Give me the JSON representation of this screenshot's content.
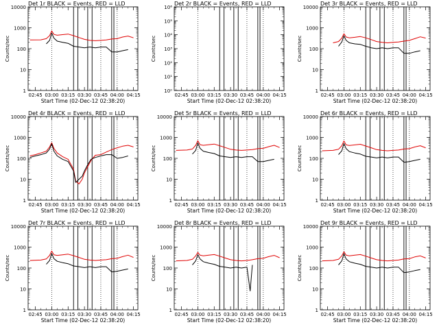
{
  "colors": {
    "events": "#000000",
    "lld": "#e00000",
    "axis": "#000000",
    "background": "#ffffff"
  },
  "x_tick_labels": [
    "02:45",
    "03:00",
    "03:15",
    "03:30",
    "03:45",
    "04:00",
    "04:15"
  ],
  "x_axis_label": "Start Time (02-Dec-12 02:38:20)",
  "y_axis_label": "Counts/sec",
  "chart_data": [
    {
      "type": "line",
      "title": "Det 1r BLACK = Events, RED = LLD",
      "xlabel": "Start Time (02-Dec-12 02:38:20)",
      "ylabel": "Counts/sec",
      "y_scale": "log",
      "ylim": [
        1,
        10000
      ],
      "y_tick_labels": [
        "1",
        "10",
        "100",
        "1000",
        "10000"
      ],
      "x_tick_labels": [
        "02:45",
        "03:00",
        "03:15",
        "03:30",
        "03:45",
        "04:00",
        "04:15"
      ],
      "x": [
        "02:40",
        "02:50",
        "02:55",
        "02:58",
        "03:00",
        "03:02",
        "03:05",
        "03:10",
        "03:15",
        "03:20",
        "03:25",
        "03:30",
        "03:35",
        "03:40",
        "03:45",
        "03:50",
        "03:55",
        "04:00",
        "04:05",
        "04:10",
        "04:15"
      ],
      "series": [
        {
          "name": "LLD",
          "values": [
            260,
            265,
            300,
            420,
            700,
            480,
            440,
            470,
            500,
            420,
            340,
            280,
            250,
            240,
            250,
            260,
            290,
            300,
            360,
            400,
            330
          ]
        },
        {
          "name": "Events",
          "values": [
            null,
            null,
            170,
            250,
            560,
            320,
            230,
            200,
            180,
            130,
            120,
            110,
            120,
            110,
            120,
            120,
            70,
            70,
            80,
            90,
            null
          ]
        }
      ]
    },
    {
      "type": "line",
      "title": "Det 2r BLACK = Events, RED = LLD",
      "xlabel": "Start Time (02-Dec-12 02:38:20)",
      "ylabel": "Counts/sec",
      "y_scale": "log",
      "ylim": [
        1,
        1000000
      ],
      "y_tick_labels": [
        "10⁰",
        "10¹",
        "10²",
        "10³",
        "10⁴",
        "10⁵",
        "10⁶"
      ],
      "x_tick_labels": [
        "02:45",
        "03:00",
        "03:15",
        "03:30",
        "03:45",
        "04:00",
        "04:15"
      ],
      "x": [],
      "series": []
    },
    {
      "type": "line",
      "title": "Det 3r BLACK = Events, RED = LLD",
      "xlabel": "Start Time (02-Dec-12 02:38:20)",
      "ylabel": "Counts/sec",
      "y_scale": "log",
      "ylim": [
        1,
        10000
      ],
      "y_tick_labels": [
        "1",
        "10",
        "100",
        "1000",
        "10000"
      ],
      "x_tick_labels": [
        "02:45",
        "03:00",
        "03:15",
        "03:30",
        "03:45",
        "04:00",
        "04:15"
      ],
      "x": [
        "02:50",
        "02:55",
        "02:58",
        "03:00",
        "03:02",
        "03:05",
        "03:10",
        "03:15",
        "03:20",
        "03:25",
        "03:30",
        "03:35",
        "03:40",
        "03:45",
        "03:50",
        "03:55",
        "04:00",
        "04:05",
        "04:10",
        "04:15"
      ],
      "series": [
        {
          "name": "LLD",
          "values": [
            190,
            220,
            320,
            520,
            360,
            330,
            350,
            380,
            330,
            270,
            220,
            200,
            190,
            200,
            210,
            230,
            250,
            300,
            370,
            320
          ]
        },
        {
          "name": "Events",
          "values": [
            null,
            130,
            210,
            420,
            250,
            190,
            170,
            160,
            130,
            110,
            100,
            110,
            100,
            110,
            110,
            60,
            60,
            70,
            80,
            null
          ]
        }
      ]
    },
    {
      "type": "line",
      "title": "Det 4r BLACK = Events, RED = LLD",
      "xlabel": "Start Time (02-Dec-12 02:38:20)",
      "ylabel": "Counts/sec",
      "y_scale": "log",
      "ylim": [
        1,
        10000
      ],
      "y_tick_labels": [
        "1",
        "10",
        "100",
        "1000",
        "10000"
      ],
      "x_tick_labels": [
        "02:45",
        "03:00",
        "03:15",
        "03:30",
        "03:45",
        "04:00",
        "04:15"
      ],
      "x": [
        "02:40",
        "02:45",
        "02:50",
        "02:55",
        "02:58",
        "03:00",
        "03:02",
        "03:05",
        "03:10",
        "03:15",
        "03:20",
        "03:22",
        "03:25",
        "03:28",
        "03:30",
        "03:33",
        "03:36",
        "03:40",
        "03:45",
        "03:50",
        "03:55",
        "04:00",
        "04:05",
        "04:10",
        "04:15"
      ],
      "series": [
        {
          "name": "LLD",
          "values": [
            130,
            150,
            180,
            220,
            350,
            560,
            300,
            180,
            120,
            90,
            30,
            8,
            6,
            10,
            20,
            40,
            80,
            140,
            150,
            200,
            260,
            320,
            380,
            420,
            350
          ]
        },
        {
          "name": "Events",
          "values": [
            110,
            130,
            150,
            180,
            280,
            500,
            220,
            130,
            90,
            70,
            25,
            7,
            10,
            14,
            25,
            50,
            90,
            110,
            130,
            150,
            150,
            100,
            110,
            130,
            null
          ]
        }
      ]
    },
    {
      "type": "line",
      "title": "Det 5r BLACK = Events, RED = LLD",
      "xlabel": "Start Time (02-Dec-12 02:38:20)",
      "ylabel": "Counts/sec",
      "y_scale": "log",
      "ylim": [
        1,
        10000
      ],
      "y_tick_labels": [
        "1",
        "10",
        "100",
        "1000",
        "10000"
      ],
      "x_tick_labels": [
        "02:45",
        "03:00",
        "03:15",
        "03:30",
        "03:45",
        "04:00",
        "04:15"
      ],
      "x": [
        "02:40",
        "02:50",
        "02:55",
        "02:58",
        "03:00",
        "03:02",
        "03:05",
        "03:10",
        "03:15",
        "03:20",
        "03:25",
        "03:30",
        "03:35",
        "03:40",
        "03:45",
        "03:50",
        "03:55",
        "04:00",
        "04:05",
        "04:10",
        "04:15"
      ],
      "series": [
        {
          "name": "LLD",
          "values": [
            240,
            250,
            280,
            420,
            700,
            450,
            420,
            450,
            480,
            400,
            330,
            270,
            250,
            240,
            250,
            260,
            290,
            300,
            360,
            420,
            330
          ]
        },
        {
          "name": "Events",
          "values": [
            null,
            null,
            160,
            240,
            550,
            300,
            220,
            190,
            170,
            130,
            120,
            110,
            120,
            110,
            120,
            120,
            70,
            70,
            80,
            90,
            null
          ]
        }
      ]
    },
    {
      "type": "line",
      "title": "Det 6r BLACK = Events, RED = LLD",
      "xlabel": "Start Time (02-Dec-12 02:38:20)",
      "ylabel": "Counts/sec",
      "y_scale": "log",
      "ylim": [
        1,
        10000
      ],
      "y_tick_labels": [
        "1",
        "10",
        "100",
        "1000",
        "10000"
      ],
      "x_tick_labels": [
        "02:45",
        "03:00",
        "03:15",
        "03:30",
        "03:45",
        "04:00",
        "04:15"
      ],
      "x": [
        "02:40",
        "02:50",
        "02:55",
        "02:58",
        "03:00",
        "03:02",
        "03:05",
        "03:10",
        "03:15",
        "03:20",
        "03:25",
        "03:30",
        "03:35",
        "03:40",
        "03:45",
        "03:50",
        "03:55",
        "04:00",
        "04:05",
        "04:10",
        "04:15"
      ],
      "series": [
        {
          "name": "LLD",
          "values": [
            230,
            240,
            270,
            400,
            680,
            440,
            410,
            440,
            470,
            390,
            320,
            260,
            240,
            230,
            240,
            250,
            280,
            290,
            350,
            400,
            320
          ]
        },
        {
          "name": "Events",
          "values": [
            null,
            null,
            150,
            230,
            520,
            290,
            210,
            180,
            160,
            125,
            115,
            105,
            115,
            105,
            115,
            115,
            65,
            70,
            80,
            90,
            null
          ]
        }
      ]
    },
    {
      "type": "line",
      "title": "Det 7r BLACK = Events, RED = LLD",
      "xlabel": "Start Time (02-Dec-12 02:38:20)",
      "ylabel": "Counts/sec",
      "y_scale": "log",
      "ylim": [
        1,
        10000
      ],
      "y_tick_labels": [
        "1",
        "10",
        "100",
        "1000",
        "10000"
      ],
      "x_tick_labels": [
        "02:45",
        "03:00",
        "03:15",
        "03:30",
        "03:45",
        "04:00",
        "04:15"
      ],
      "x": [
        "02:40",
        "02:50",
        "02:55",
        "02:58",
        "03:00",
        "03:02",
        "03:05",
        "03:10",
        "03:15",
        "03:20",
        "03:25",
        "03:30",
        "03:35",
        "03:40",
        "03:45",
        "03:50",
        "03:55",
        "04:00",
        "04:05",
        "04:10",
        "04:15"
      ],
      "series": [
        {
          "name": "LLD",
          "values": [
            230,
            240,
            270,
            400,
            650,
            430,
            400,
            430,
            460,
            390,
            320,
            260,
            240,
            230,
            240,
            250,
            280,
            290,
            350,
            410,
            320
          ]
        },
        {
          "name": "Events",
          "values": [
            null,
            null,
            150,
            230,
            500,
            280,
            210,
            180,
            160,
            125,
            115,
            105,
            115,
            105,
            115,
            115,
            65,
            70,
            80,
            90,
            null
          ]
        }
      ]
    },
    {
      "type": "line",
      "title": "Det 8r BLACK = Events, RED = LLD",
      "xlabel": "Start Time (02-Dec-12 02:38:20)",
      "ylabel": "Counts/sec",
      "y_scale": "log",
      "ylim": [
        1,
        10000
      ],
      "y_tick_labels": [
        "1",
        "10",
        "100",
        "1000",
        "10000"
      ],
      "x_tick_labels": [
        "02:45",
        "03:00",
        "03:15",
        "03:30",
        "03:45",
        "04:00",
        "04:15"
      ],
      "x": [
        "02:40",
        "02:50",
        "02:55",
        "02:58",
        "03:00",
        "03:02",
        "03:05",
        "03:10",
        "03:15",
        "03:20",
        "03:25",
        "03:30",
        "03:35",
        "03:40",
        "03:45",
        "03:48",
        "03:50",
        "03:55",
        "04:00",
        "04:05",
        "04:10",
        "04:15"
      ],
      "series": [
        {
          "name": "LLD",
          "values": [
            220,
            230,
            260,
            380,
            560,
            410,
            380,
            410,
            440,
            370,
            300,
            250,
            230,
            220,
            230,
            240,
            250,
            280,
            290,
            350,
            400,
            310
          ]
        },
        {
          "name": "Events",
          "values": [
            null,
            null,
            140,
            220,
            440,
            270,
            200,
            170,
            150,
            120,
            110,
            100,
            110,
            100,
            110,
            8,
            140,
            null,
            null,
            null,
            null,
            null
          ]
        }
      ]
    },
    {
      "type": "line",
      "title": "Det 9r BLACK = Events, RED = LLD",
      "xlabel": "Start Time (02-Dec-12 02:38:20)",
      "ylabel": "Counts/sec",
      "y_scale": "log",
      "ylim": [
        1,
        10000
      ],
      "y_tick_labels": [
        "1",
        "10",
        "100",
        "1000",
        "10000"
      ],
      "x_tick_labels": [
        "02:45",
        "03:00",
        "03:15",
        "03:30",
        "03:45",
        "04:00",
        "04:15"
      ],
      "x": [
        "02:40",
        "02:50",
        "02:55",
        "02:58",
        "03:00",
        "03:02",
        "03:05",
        "03:10",
        "03:15",
        "03:20",
        "03:25",
        "03:30",
        "03:35",
        "03:40",
        "03:45",
        "03:50",
        "03:55",
        "04:00",
        "04:05",
        "04:10",
        "04:15"
      ],
      "series": [
        {
          "name": "LLD",
          "values": [
            220,
            230,
            260,
            380,
            600,
            410,
            380,
            410,
            440,
            370,
            300,
            250,
            230,
            220,
            230,
            240,
            270,
            280,
            340,
            380,
            300
          ]
        },
        {
          "name": "Events",
          "values": [
            null,
            null,
            140,
            220,
            480,
            270,
            200,
            170,
            150,
            120,
            110,
            100,
            110,
            100,
            110,
            110,
            60,
            65,
            75,
            85,
            null
          ]
        }
      ]
    }
  ]
}
